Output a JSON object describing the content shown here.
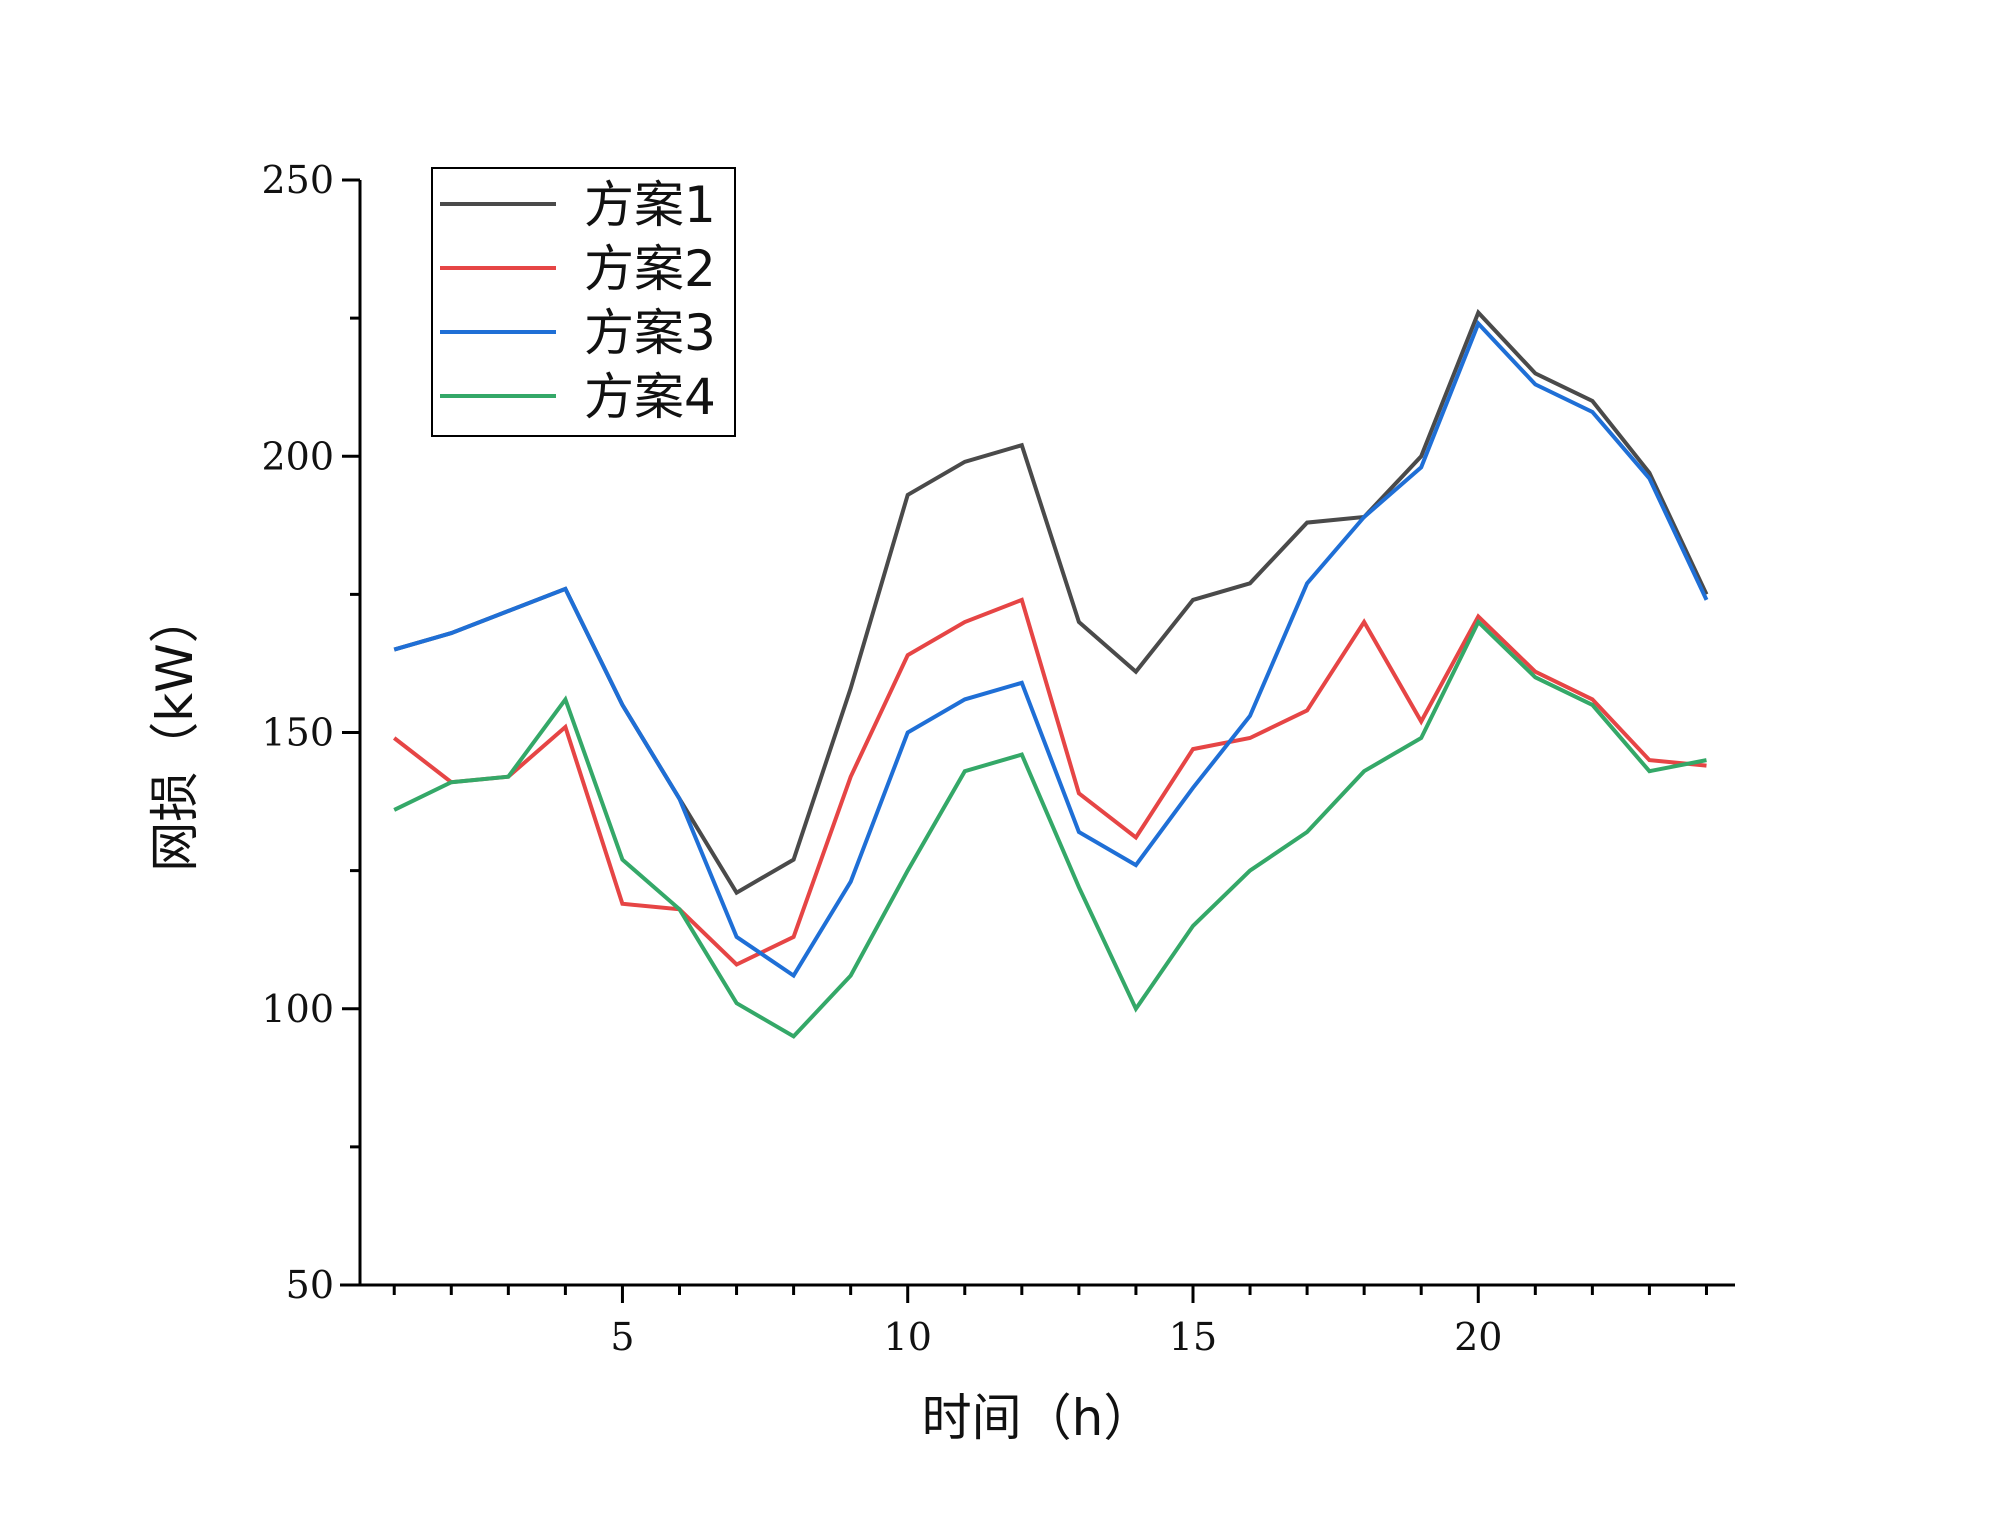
{
  "chart_data": {
    "type": "line",
    "title": "",
    "xlabel": "时间（h）",
    "ylabel": "网损（kW）",
    "xlim": [
      0.4,
      24.5
    ],
    "ylim": [
      50,
      250
    ],
    "xticks": [
      5,
      10,
      15,
      20
    ],
    "yticks": [
      50,
      100,
      150,
      200,
      250
    ],
    "grid": false,
    "legend_position": "top-left",
    "x": [
      1,
      2,
      3,
      4,
      5,
      6,
      7,
      8,
      9,
      10,
      11,
      12,
      13,
      14,
      15,
      16,
      17,
      18,
      19,
      20,
      21,
      22,
      23,
      24
    ],
    "series": [
      {
        "name": "方案1",
        "color": "#4a4a4a",
        "values": [
          165,
          168,
          172,
          176,
          155,
          138,
          121,
          127,
          158,
          193,
          199,
          202,
          170,
          161,
          174,
          177,
          188,
          189,
          200,
          226,
          215,
          210,
          197,
          175
        ]
      },
      {
        "name": "方案2",
        "color": "#e64545",
        "values": [
          149,
          141,
          142,
          151,
          119,
          118,
          108,
          113,
          142,
          164,
          170,
          174,
          139,
          131,
          147,
          149,
          154,
          170,
          152,
          171,
          161,
          156,
          145,
          144
        ]
      },
      {
        "name": "方案3",
        "color": "#1f6fd6",
        "values": [
          165,
          168,
          172,
          176,
          155,
          138,
          113,
          106,
          123,
          150,
          156,
          159,
          132,
          126,
          140,
          153,
          177,
          189,
          198,
          224,
          213,
          208,
          196,
          174
        ]
      },
      {
        "name": "方案4",
        "color": "#34a868",
        "values": [
          136,
          141,
          142,
          156,
          127,
          118,
          101,
          95,
          106,
          125,
          143,
          146,
          122,
          100,
          115,
          125,
          132,
          143,
          149,
          170,
          160,
          155,
          143,
          145
        ]
      }
    ]
  }
}
